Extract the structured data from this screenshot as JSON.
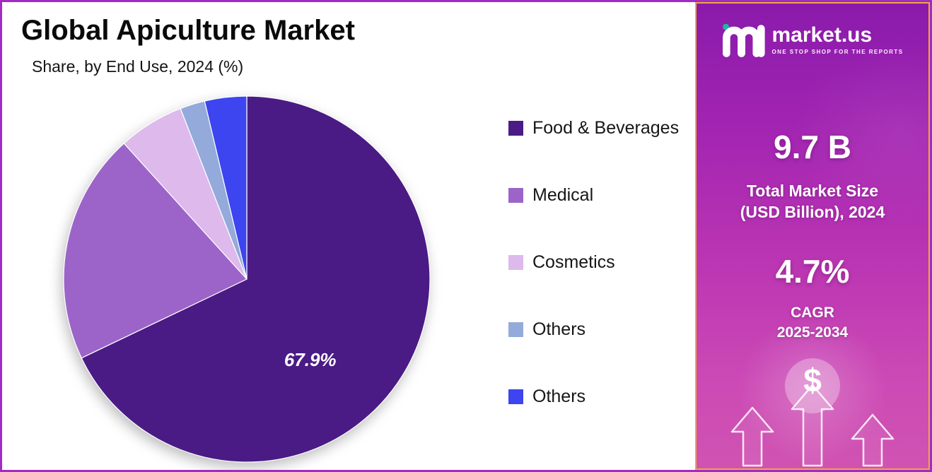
{
  "header": {
    "title": "Global Apiculture Market",
    "subtitle": "Share, by End Use, 2024 (%)"
  },
  "chart_data": {
    "type": "pie",
    "title": "Global Apiculture Market",
    "subtitle": "Share, by End Use, 2024 (%)",
    "unit": "%",
    "categories": [
      "Food & Beverages",
      "Medical",
      "Cosmetics",
      "Others",
      "Others"
    ],
    "values": [
      67.9,
      20.4,
      5.8,
      2.2,
      3.7
    ],
    "colors": [
      "#4a1b84",
      "#9c64c9",
      "#ddb9ec",
      "#93aadb",
      "#3c45ef"
    ],
    "data_labels": [
      "67.9%",
      "",
      "",
      "",
      ""
    ],
    "start_angle_deg": 0,
    "direction": "clockwise",
    "legend_position": "right"
  },
  "panel": {
    "brand_name": "market.us",
    "brand_tagline": "ONE STOP SHOP FOR THE REPORTS",
    "stat1_value": "9.7 B",
    "stat1_label_line1": "Total Market Size",
    "stat1_label_line2": "(USD Billion), 2024",
    "stat2_value": "4.7%",
    "stat2_label_line1": "CAGR",
    "stat2_label_line2": "2025-2034",
    "dollar_symbol": "$",
    "icons": {
      "logo": "marketus-logo-icon",
      "dollar": "dollar-icon",
      "growth": "triple-up-arrow-icon"
    },
    "colors": {
      "gradient_top": "#8a1aab",
      "gradient_bottom": "#d053b2",
      "panel_border": "#f0a73c",
      "frame_border": "#a12bc4",
      "logo_dot": "#1fb6a0"
    }
  }
}
